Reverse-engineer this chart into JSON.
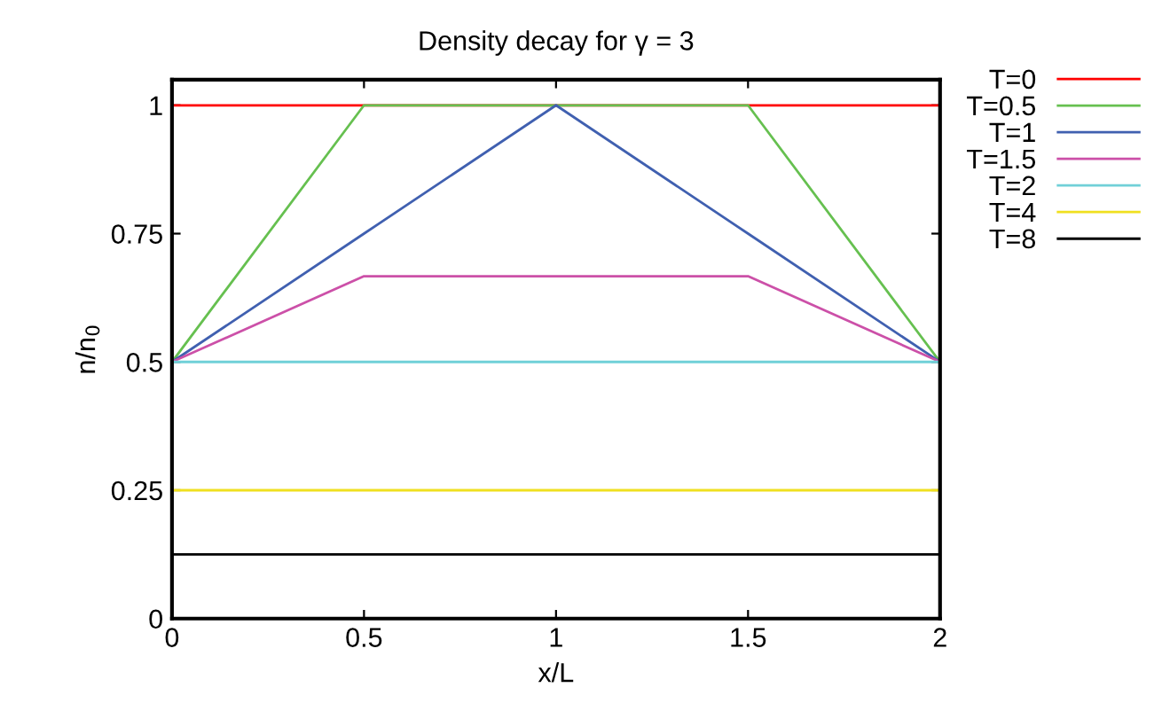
{
  "chart_data": {
    "type": "line",
    "title": "Density decay for γ = 3",
    "xlabel": "x/L",
    "ylabel": "n/n$_{0}$",
    "x": [
      0,
      0.5,
      1,
      1.5,
      2
    ],
    "series": [
      {
        "name": "T=0",
        "color": "#ff0000",
        "values": [
          1,
          1,
          1,
          1,
          1
        ]
      },
      {
        "name": "T=0.5",
        "color": "#66c050",
        "values": [
          0.5,
          1,
          1,
          1,
          0.5
        ]
      },
      {
        "name": "T=1",
        "color": "#4060b0",
        "values": [
          0.5,
          0.75,
          1,
          0.75,
          0.5
        ]
      },
      {
        "name": "T=1.5",
        "color": "#cc50a8",
        "values": [
          0.5,
          0.667,
          0.667,
          0.667,
          0.5
        ]
      },
      {
        "name": "T=2",
        "color": "#70d0d8",
        "values": [
          0.5,
          0.5,
          0.5,
          0.5,
          0.5
        ]
      },
      {
        "name": "T=4",
        "color": "#f0e020",
        "values": [
          0.25,
          0.25,
          0.25,
          0.25,
          0.25
        ]
      },
      {
        "name": "T=8",
        "color": "#000000",
        "values": [
          0.125,
          0.125,
          0.125,
          0.125,
          0.125
        ]
      }
    ],
    "xlim": [
      0,
      2
    ],
    "xticks": [
      0,
      0.5,
      1,
      1.5,
      2
    ],
    "ylim": [
      0,
      1.05
    ],
    "yticks": [
      0,
      0.25,
      0.5,
      0.75,
      1
    ],
    "grid": false,
    "legend": "top right",
    "marker": "none",
    "line_style": "solid"
  }
}
